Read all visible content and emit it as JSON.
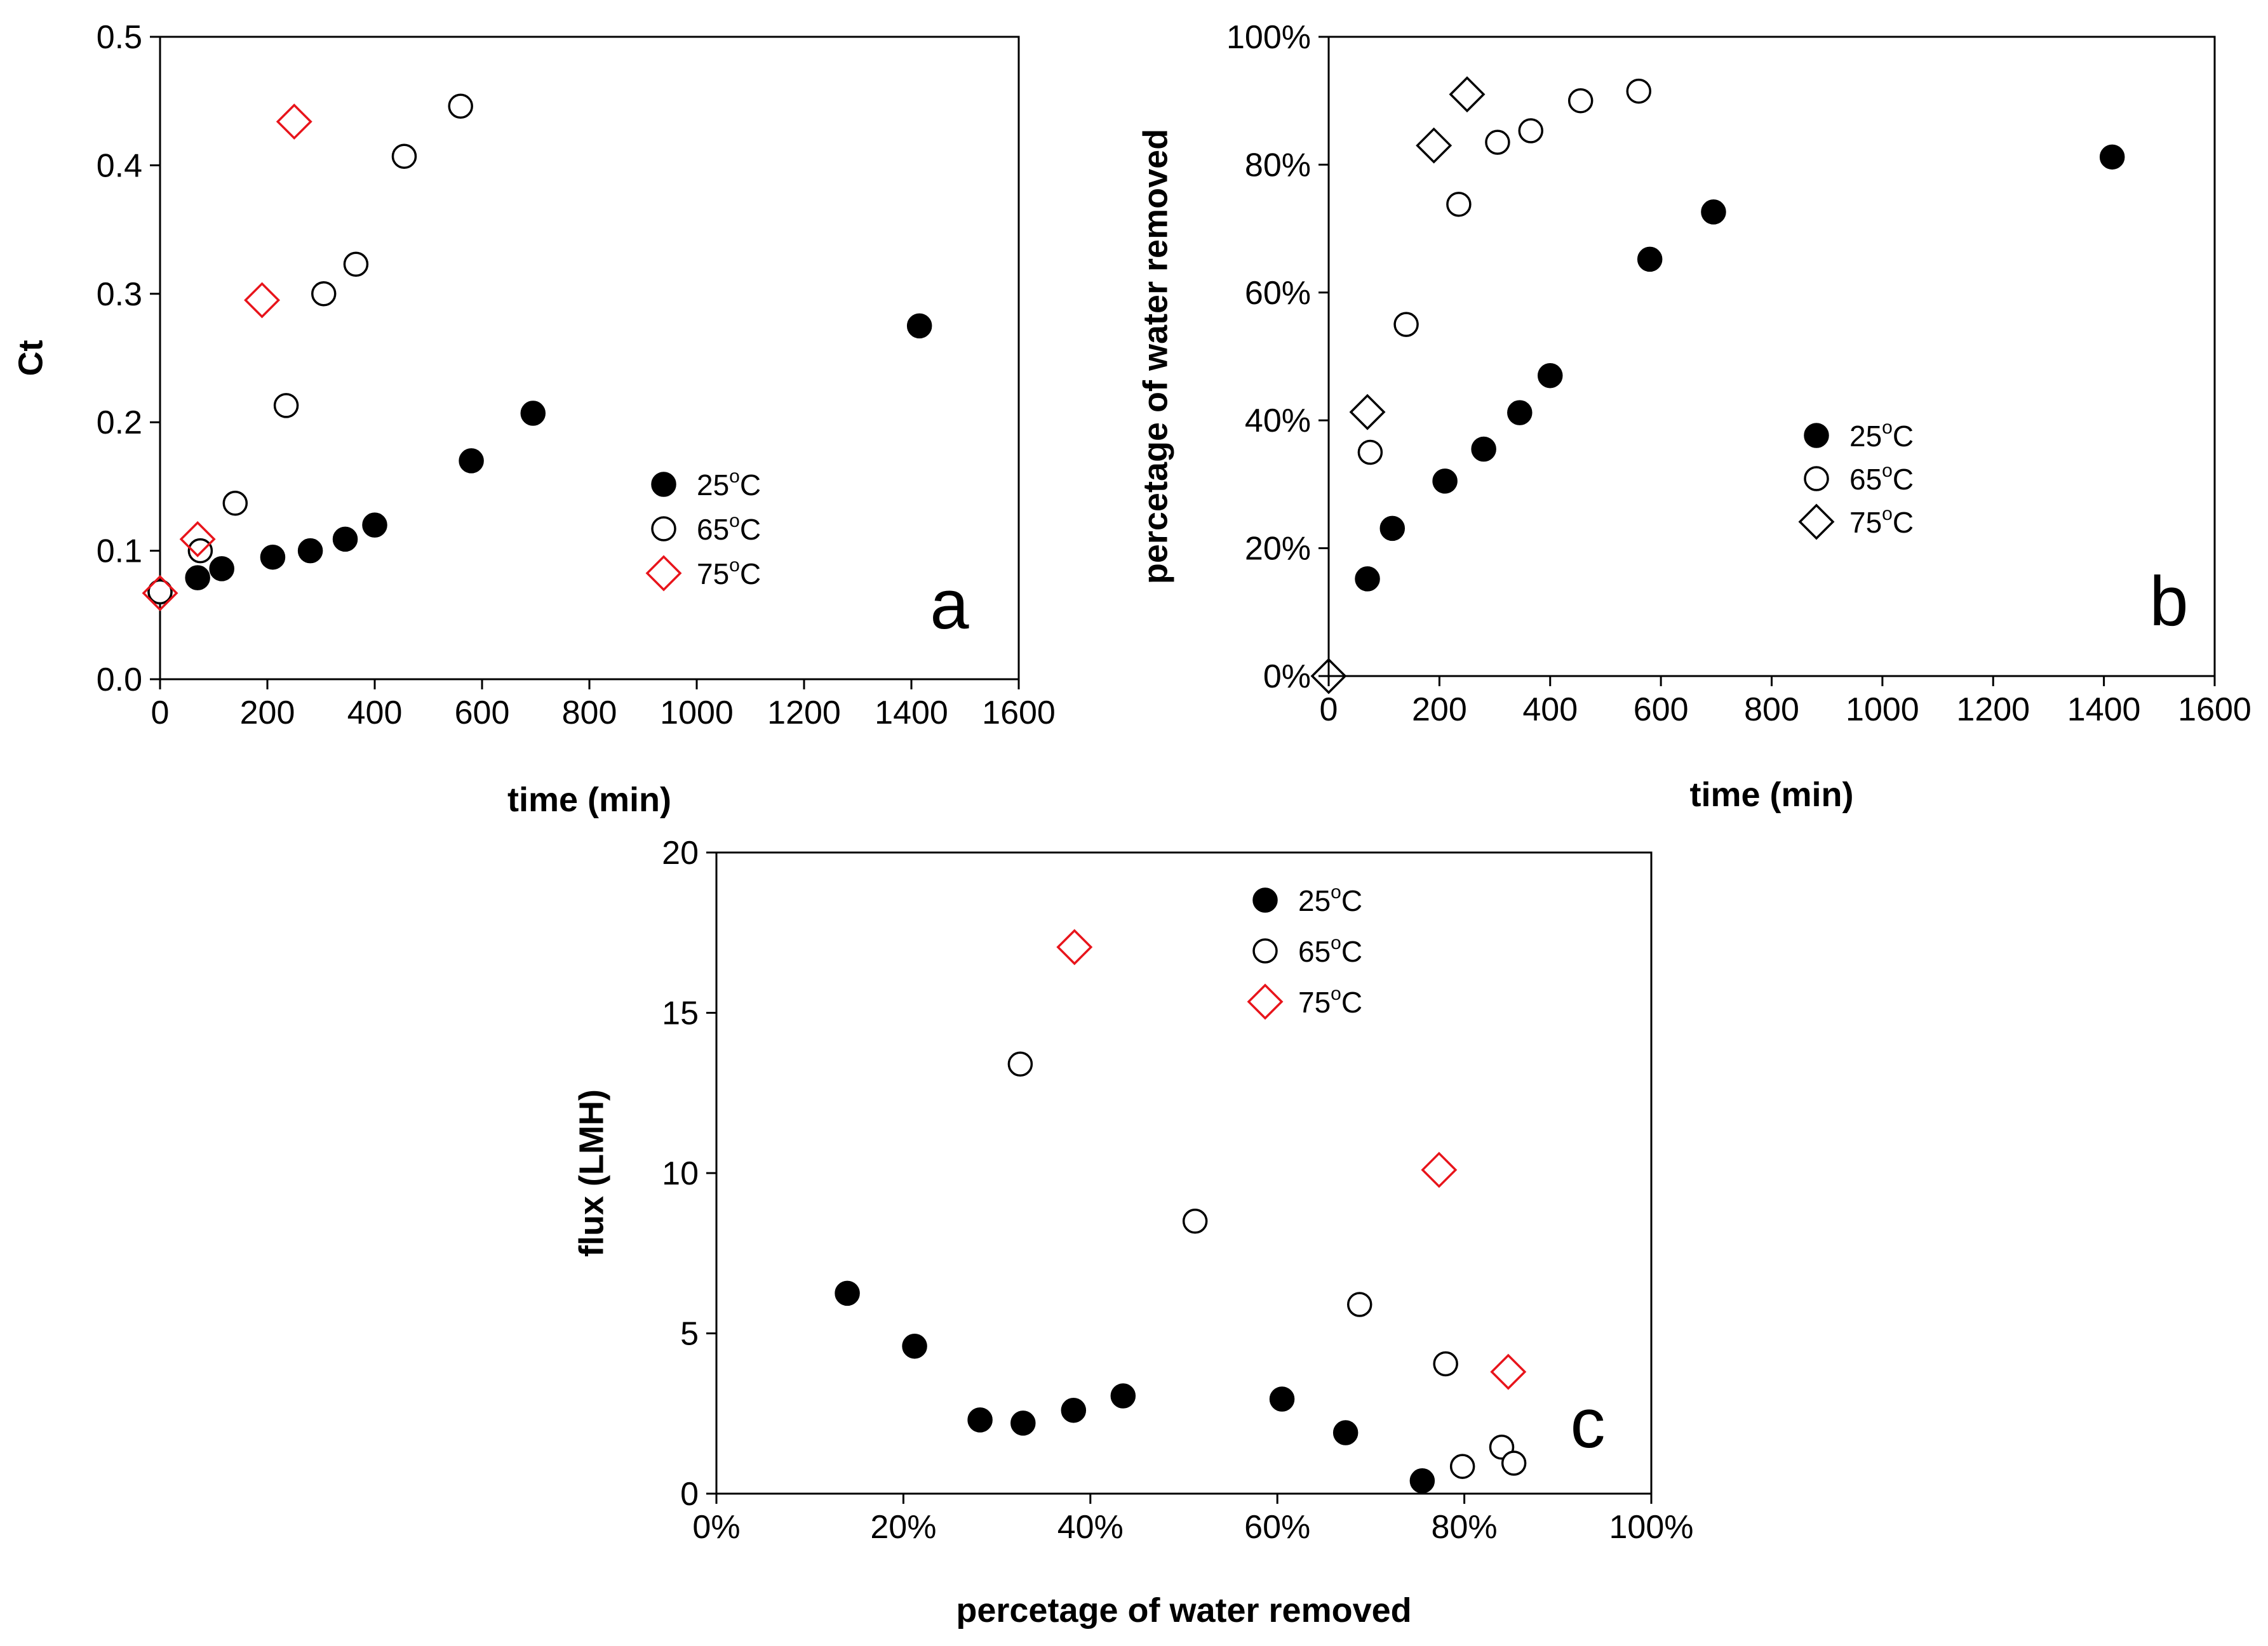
{
  "colors": {
    "accent": "#e8141b",
    "black": "#000000",
    "frame": "#000000"
  },
  "chart_data": [
    {
      "id": "a",
      "type": "scatter",
      "panel_label": "a",
      "xlabel": "time (min)",
      "ylabel": "Ct",
      "xlim": [
        0,
        1600
      ],
      "ylim": [
        0,
        0.5
      ],
      "xticks": [
        "0",
        "200",
        "400",
        "600",
        "800",
        "1000",
        "1200",
        "1400",
        "1600"
      ],
      "yticks": [
        "0.0",
        "0.1",
        "0.2",
        "0.3",
        "0.4",
        "0.5"
      ],
      "legend_position": "right-middle",
      "series": [
        {
          "name": "25",
          "unit": "oC",
          "label": "25°C",
          "marker": "filled-circle",
          "x": [
            0,
            70,
            115,
            210,
            280,
            345,
            400,
            580,
            695,
            1415
          ],
          "y": [
            0.068,
            0.079,
            0.086,
            0.095,
            0.1,
            0.109,
            0.12,
            0.17,
            0.207,
            0.275
          ]
        },
        {
          "name": "65",
          "unit": "oC",
          "label": "65°C",
          "marker": "open-circle",
          "x": [
            0,
            75,
            140,
            235,
            305,
            365,
            455,
            560
          ],
          "y": [
            0.068,
            0.1,
            0.137,
            0.213,
            0.3,
            0.323,
            0.407,
            0.446
          ]
        },
        {
          "name": "75",
          "unit": "oC",
          "label": "75°C",
          "marker": "open-diamond-red",
          "x": [
            0,
            70,
            190,
            250
          ],
          "y": [
            0.067,
            0.109,
            0.295,
            0.434
          ]
        }
      ]
    },
    {
      "id": "b",
      "type": "scatter",
      "panel_label": "b",
      "xlabel": "time (min)",
      "ylabel": "percetage of water removed",
      "xlim": [
        0,
        1600
      ],
      "ylim": [
        0,
        100
      ],
      "xticks": [
        "0",
        "200",
        "400",
        "600",
        "800",
        "1000",
        "1200",
        "1400",
        "1600"
      ],
      "yticks": [
        "0%",
        "20%",
        "40%",
        "60%",
        "80%",
        "100%"
      ],
      "legend_position": "right-middle",
      "series": [
        {
          "name": "25",
          "unit": "oC",
          "label": "25°C",
          "marker": "filled-circle",
          "x": [
            70,
            115,
            210,
            280,
            345,
            400,
            580,
            695,
            1415
          ],
          "y": [
            15.2,
            23.1,
            30.5,
            35.5,
            41.2,
            47,
            65.2,
            72.6,
            81.2
          ]
        },
        {
          "name": "65",
          "unit": "oC",
          "label": "65°C",
          "marker": "open-circle",
          "x": [
            75,
            140,
            235,
            305,
            365,
            455,
            560
          ],
          "y": [
            35,
            55,
            73.8,
            83.5,
            85.3,
            90,
            91.5
          ]
        },
        {
          "name": "75",
          "unit": "oC",
          "label": "75°C",
          "marker": "open-diamond-black",
          "x": [
            0,
            70,
            190,
            250
          ],
          "y": [
            0,
            41.3,
            83,
            91
          ]
        }
      ]
    },
    {
      "id": "c",
      "type": "scatter",
      "panel_label": "c",
      "xlabel": "percetage of water removed",
      "ylabel": "flux (LMH)",
      "xlim": [
        0,
        100
      ],
      "ylim": [
        0,
        20
      ],
      "xticks": [
        "0%",
        "20%",
        "40%",
        "60%",
        "80%",
        "100%"
      ],
      "yticks": [
        "0",
        "5",
        "10",
        "15",
        "20"
      ],
      "legend_position": "top-center",
      "series": [
        {
          "name": "25",
          "unit": "oC",
          "label": "25°C",
          "marker": "filled-circle",
          "x": [
            14,
            21.2,
            28.2,
            32.8,
            38.2,
            43.5,
            60.5,
            67.3,
            75.5
          ],
          "y": [
            6.25,
            4.6,
            2.3,
            2.2,
            2.6,
            3.05,
            2.95,
            1.9,
            0.4
          ]
        },
        {
          "name": "65",
          "unit": "oC",
          "label": "65°C",
          "marker": "open-circle",
          "x": [
            32.5,
            51.2,
            68.8,
            78,
            79.8,
            84,
            85.3
          ],
          "y": [
            13.4,
            8.5,
            5.9,
            4.05,
            0.85,
            1.45,
            0.95
          ]
        },
        {
          "name": "75",
          "unit": "oC",
          "label": "75°C",
          "marker": "open-diamond-red",
          "x": [
            38.3,
            77.3,
            84.7
          ],
          "y": [
            17.05,
            10.1,
            3.8
          ]
        }
      ]
    }
  ]
}
